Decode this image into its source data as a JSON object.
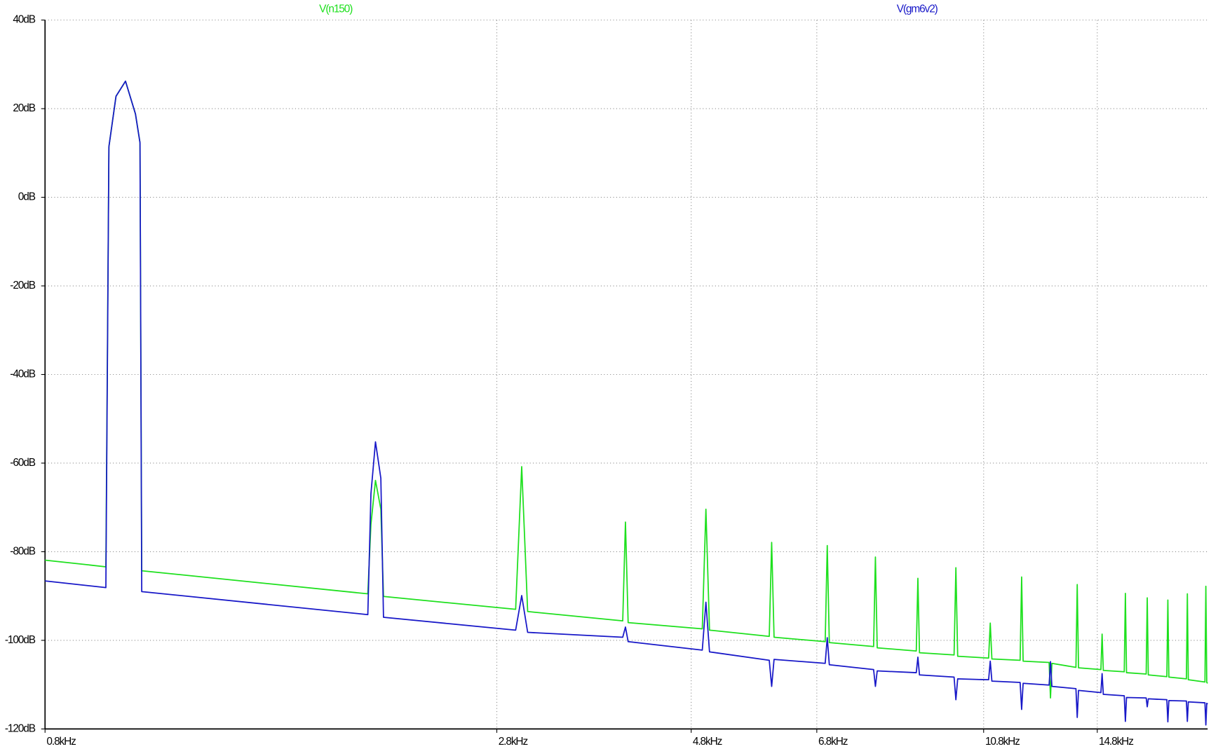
{
  "chart_data": {
    "type": "line",
    "xscale": "log",
    "grid": true,
    "xlim": [
      0.8,
      20.1
    ],
    "ylim": [
      -120,
      40
    ],
    "xticks": [
      {
        "value": 0.8,
        "label": "0.8kHz"
      },
      {
        "value": 2.8,
        "label": "2.8kHz"
      },
      {
        "value": 4.8,
        "label": "4.8kHz"
      },
      {
        "value": 6.8,
        "label": "6.8kHz"
      },
      {
        "value": 10.8,
        "label": "10.8kHz"
      },
      {
        "value": 14.8,
        "label": "14.8kHz"
      }
    ],
    "yticks": [
      {
        "value": 40,
        "label": "40dB"
      },
      {
        "value": 20,
        "label": "20dB"
      },
      {
        "value": 0,
        "label": "0dB"
      },
      {
        "value": -20,
        "label": "-20dB"
      },
      {
        "value": -40,
        "label": "-40dB"
      },
      {
        "value": -60,
        "label": "-60dB"
      },
      {
        "value": -80,
        "label": "-80dB"
      },
      {
        "value": -100,
        "label": "-100dB"
      },
      {
        "value": -120,
        "label": "-120dB"
      }
    ],
    "x": [
      0.8,
      0.947,
      0.955,
      0.974,
      1.0,
      1.028,
      1.041,
      1.046,
      1.958,
      1.975,
      2.0,
      2.03,
      2.045,
      2.95,
      3,
      3.05,
      3.97,
      4,
      4.03,
      4.95,
      5,
      5.05,
      5.96,
      6,
      6.04,
      6.96,
      7,
      7.04,
      7.96,
      8,
      8.04,
      8.96,
      9,
      9.04,
      9.95,
      10,
      10.05,
      10.95,
      11,
      11.05,
      11.95,
      12,
      12.05,
      12.95,
      13,
      13.05,
      13.95,
      14,
      14.05,
      14.95,
      15,
      15.05,
      15.95,
      16,
      16.05,
      16.95,
      17,
      17.05,
      17.95,
      18,
      18.05,
      18.95,
      19,
      19.05,
      19.95,
      20,
      20.05,
      20.1
    ],
    "series": [
      {
        "name": "V(n150)",
        "color": "#1ee01e",
        "values": [
          -81.9,
          -83.4,
          11.4,
          22.8,
          26.2,
          18.8,
          12.3,
          -84.3,
          -89.5,
          -73.8,
          -63.9,
          -70.4,
          -90.1,
          -93.0,
          -60.8,
          -93.5,
          -95.6,
          -73.3,
          -96.0,
          -97.4,
          -70.4,
          -97.7,
          -99.1,
          -77.9,
          -99.3,
          -100.3,
          -78.6,
          -100.5,
          -101.4,
          -81.2,
          -101.7,
          -102.4,
          -86.0,
          -102.8,
          -103.3,
          -83.6,
          -103.6,
          -104.0,
          -96.1,
          -104.2,
          -104.5,
          -85.7,
          -104.7,
          -105.0,
          -113.0,
          -105.2,
          -106.1,
          -87.4,
          -106.2,
          -106.6,
          -98.6,
          -106.8,
          -107.1,
          -89.4,
          -107.3,
          -107.6,
          -90.4,
          -107.8,
          -108.2,
          -90.9,
          -108.3,
          -108.7,
          -89.5,
          -108.9,
          -109.4,
          -87.8,
          -109.5,
          -109.7
        ]
      },
      {
        "name": "V(gm6v2)",
        "color": "#1818c8",
        "values": [
          -86.6,
          -88.1,
          11.4,
          22.8,
          26.2,
          18.8,
          12.3,
          -89.0,
          -94.2,
          -66.9,
          -55.2,
          -63.4,
          -94.8,
          -97.7,
          -89.9,
          -98.2,
          -99.3,
          -97.0,
          -100.3,
          -102.2,
          -91.4,
          -102.6,
          -104.5,
          -110.4,
          -104.3,
          -105.2,
          -99.4,
          -105.5,
          -106.6,
          -110.4,
          -106.9,
          -107.3,
          -103.8,
          -107.8,
          -108.3,
          -113.4,
          -108.7,
          -108.9,
          -104.7,
          -109.2,
          -109.5,
          -115.6,
          -109.7,
          -110.1,
          -104.8,
          -110.4,
          -110.9,
          -117.4,
          -111.3,
          -111.8,
          -107.5,
          -112.2,
          -112.5,
          -118.3,
          -112.9,
          -113.0,
          -115.0,
          -113.2,
          -113.4,
          -118.4,
          -113.6,
          -113.7,
          -118.3,
          -113.9,
          -114.1,
          -119.1,
          -114.2,
          -114.4
        ]
      }
    ]
  }
}
